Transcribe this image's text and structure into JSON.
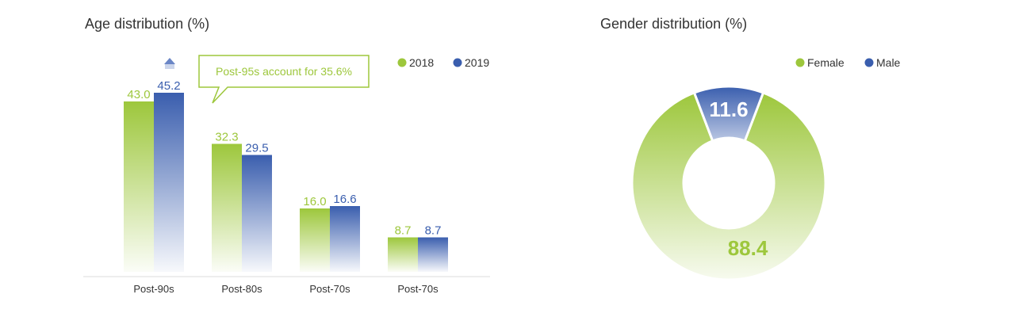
{
  "colors": {
    "green": "#9dc73c",
    "blue": "#3a5eae",
    "callout_text": "#9dc73c",
    "axis": "#dddddd",
    "arrow": "#6a86c6"
  },
  "chart_data": [
    {
      "type": "bar",
      "title": "Age distribution (%)",
      "categories": [
        "Post-90s",
        "Post-80s",
        "Post-70s",
        "Post-70s"
      ],
      "series": [
        {
          "name": "2018",
          "values": [
            43.0,
            32.3,
            16.0,
            8.7
          ]
        },
        {
          "name": "2019",
          "values": [
            45.2,
            29.5,
            16.6,
            8.7
          ]
        }
      ],
      "ylim": [
        0,
        50
      ],
      "grid": false,
      "legend": "top-right",
      "annotation": "Post-95s account for 35.6%",
      "value_labels": {
        "2018": [
          "43.0",
          "32.3",
          "16.0",
          "8.7"
        ],
        "2019": [
          "45.2",
          "29.5",
          "16.6",
          "8.7"
        ]
      }
    },
    {
      "type": "pie",
      "title": "Gender distribution (%)",
      "donut": true,
      "legend": "top",
      "slices": [
        {
          "name": "Female",
          "value": 88.4,
          "label": "88.4"
        },
        {
          "name": "Male",
          "value": 11.6,
          "label": "11.6"
        }
      ]
    }
  ]
}
